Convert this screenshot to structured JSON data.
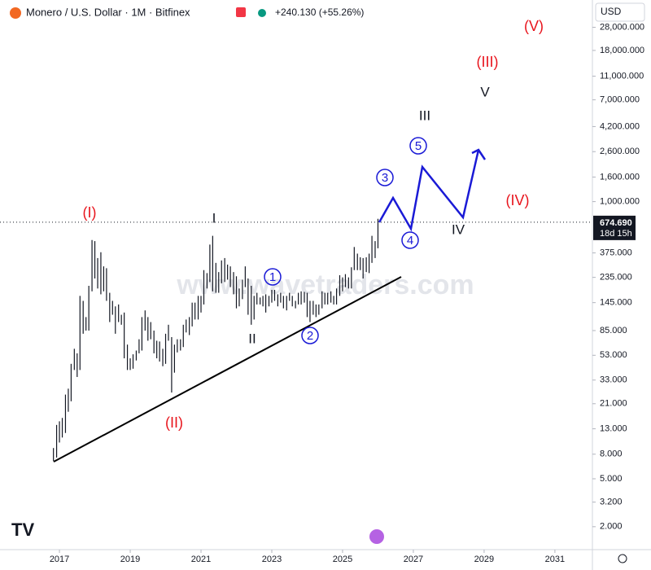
{
  "chart_data": {
    "type": "ohlc",
    "title": "Monero / U.S. Dollar · 1M · Bitfinex",
    "change": "+240.130 (+55.26%)",
    "currency": "USD",
    "watermark": "www.wavetraders.com",
    "log_scale": true,
    "grid": false,
    "color": "#131722",
    "x": [
      2016.83,
      2016.92,
      2017,
      2017.08,
      2017.17,
      2017.25,
      2017.33,
      2017.42,
      2017.5,
      2017.58,
      2017.67,
      2017.75,
      2017.83,
      2017.92,
      2018,
      2018.08,
      2018.17,
      2018.25,
      2018.33,
      2018.42,
      2018.5,
      2018.58,
      2018.67,
      2018.75,
      2018.83,
      2018.92,
      2019,
      2019.08,
      2019.17,
      2019.25,
      2019.33,
      2019.42,
      2019.5,
      2019.58,
      2019.67,
      2019.75,
      2019.83,
      2019.92,
      2020,
      2020.08,
      2020.17,
      2020.25,
      2020.33,
      2020.42,
      2020.5,
      2020.58,
      2020.67,
      2020.75,
      2020.83,
      2020.92,
      2021,
      2021.08,
      2021.17,
      2021.25,
      2021.33,
      2021.42,
      2021.5,
      2021.58,
      2021.67,
      2021.75,
      2021.83,
      2021.92,
      2022,
      2022.08,
      2022.17,
      2022.25,
      2022.33,
      2022.42,
      2022.5,
      2022.58,
      2022.67,
      2022.75,
      2022.83,
      2022.92,
      2023,
      2023.08,
      2023.17,
      2023.25,
      2023.33,
      2023.42,
      2023.5,
      2023.58,
      2023.67,
      2023.75,
      2023.83,
      2023.92,
      2024,
      2024.08,
      2024.17,
      2024.25,
      2024.33,
      2024.42,
      2024.5,
      2024.58,
      2024.67,
      2024.75,
      2024.83,
      2024.92,
      2025,
      2025.08,
      2025.17,
      2025.25,
      2025.33,
      2025.42,
      2025.5,
      2025.58,
      2025.67,
      2025.75,
      2025.83,
      2025.92,
      2026
    ],
    "high": [
      9,
      14,
      15,
      16,
      25,
      28,
      45,
      60,
      55,
      165,
      150,
      110,
      200,
      480,
      470,
      340,
      380,
      290,
      280,
      175,
      150,
      135,
      140,
      115,
      120,
      65,
      50,
      54,
      58,
      72,
      110,
      125,
      110,
      100,
      85,
      70,
      69,
      60,
      80,
      95,
      75,
      65,
      72,
      72,
      95,
      105,
      110,
      145,
      145,
      165,
      165,
      270,
      255,
      440,
      520,
      310,
      260,
      325,
      340,
      300,
      290,
      260,
      240,
      190,
      225,
      290,
      230,
      200,
      165,
      175,
      160,
      165,
      170,
      165,
      185,
      185,
      170,
      175,
      165,
      165,
      175,
      165,
      150,
      175,
      180,
      178,
      175,
      150,
      150,
      140,
      140,
      180,
      175,
      175,
      180,
      165,
      190,
      245,
      235,
      250,
      235,
      285,
      420,
      370,
      345,
      340,
      345,
      370,
      520,
      470,
      720
    ],
    "low": [
      7,
      7.5,
      10,
      11,
      12,
      18,
      22,
      40,
      35,
      40,
      80,
      85,
      85,
      180,
      230,
      190,
      170,
      180,
      150,
      100,
      115,
      80,
      100,
      95,
      50,
      40,
      40,
      41,
      48,
      55,
      58,
      85,
      70,
      72,
      55,
      50,
      47,
      43,
      45,
      70,
      26,
      38,
      56,
      58,
      62,
      82,
      78,
      92,
      105,
      105,
      120,
      140,
      190,
      215,
      180,
      175,
      175,
      210,
      215,
      225,
      195,
      170,
      130,
      135,
      155,
      195,
      115,
      95,
      105,
      140,
      140,
      135,
      120,
      135,
      145,
      150,
      135,
      145,
      130,
      125,
      150,
      135,
      130,
      140,
      140,
      145,
      110,
      100,
      115,
      110,
      115,
      130,
      140,
      140,
      145,
      140,
      140,
      165,
      180,
      195,
      190,
      190,
      270,
      270,
      270,
      230,
      260,
      255,
      310,
      340,
      410
    ],
    "price_line": {
      "value": 674.69,
      "label": "674.690"
    },
    "countdown": "18d 15h",
    "xlim": [
      2015.32,
      2032.06
    ],
    "ylim": [
      1.29,
      47200
    ],
    "xticks": [
      2017,
      2019,
      2021,
      2023,
      2025,
      2027,
      2029,
      2031
    ],
    "yticks": [
      {
        "value": 2,
        "label": "2.000"
      },
      {
        "value": 3.2,
        "label": "3.200"
      },
      {
        "value": 5,
        "label": "5.000"
      },
      {
        "value": 8,
        "label": "8.000"
      },
      {
        "value": 13,
        "label": "13.000"
      },
      {
        "value": 21,
        "label": "21.000"
      },
      {
        "value": 33,
        "label": "33.000"
      },
      {
        "value": 53,
        "label": "53.000"
      },
      {
        "value": 85,
        "label": "85.000"
      },
      {
        "value": 145,
        "label": "145.000"
      },
      {
        "value": 235,
        "label": "235.000"
      },
      {
        "value": 375,
        "label": "375.000"
      },
      {
        "value": 1000,
        "label": "1,000.000"
      },
      {
        "value": 1600,
        "label": "1,600.000"
      },
      {
        "value": 2600,
        "label": "2,600.000"
      },
      {
        "value": 4200,
        "label": "4,200.000"
      },
      {
        "value": 7000,
        "label": "7,000.000"
      },
      {
        "value": 11000,
        "label": "11,000.000"
      },
      {
        "value": 18000,
        "label": "18,000.000"
      },
      {
        "value": 28000,
        "label": "28,000.000"
      }
    ],
    "annotations": [
      "(I)",
      "(II)",
      "(III)",
      "(IV)",
      "(V)",
      "I",
      "II",
      "III",
      "IV",
      "V",
      "1",
      "2",
      "3",
      "4",
      "5"
    ]
  }
}
